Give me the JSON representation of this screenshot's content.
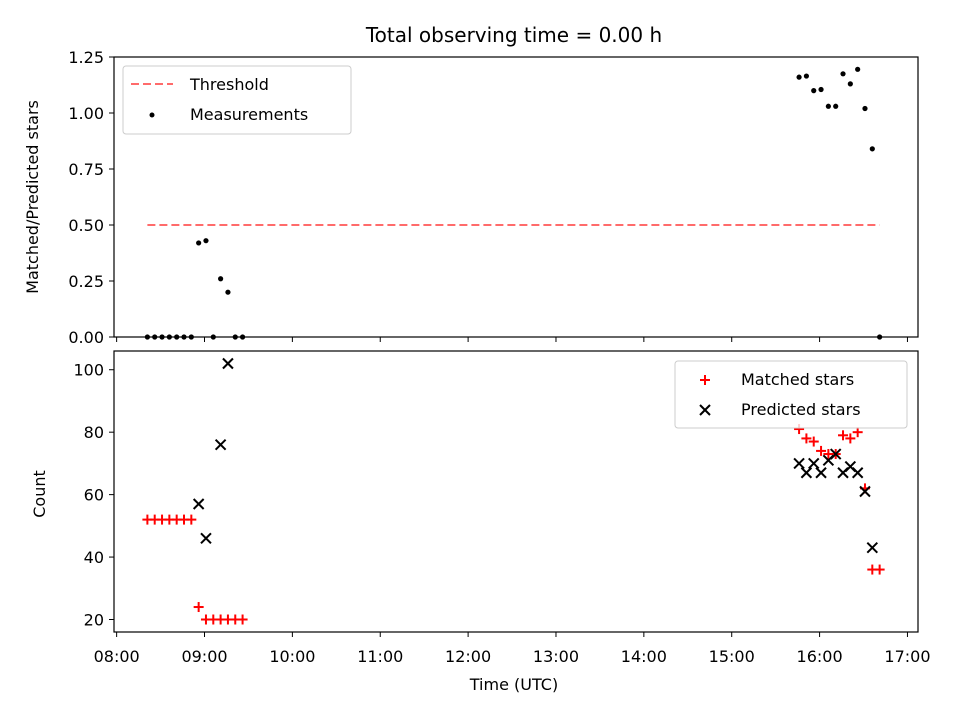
{
  "figure": {
    "title": "Total observing time = 0.00 h",
    "xlabel": "Time (UTC)"
  },
  "colors": {
    "threshold": "#ff6b6b",
    "measurements": "#000000",
    "matched": "#ff0000",
    "predicted": "#000000"
  },
  "chart_data": [
    {
      "type": "scatter",
      "panel": "top",
      "ylabel": "Matched/Predicted stars",
      "xlim": [
        "08:00",
        "17:00"
      ],
      "ylim": [
        0,
        1.25
      ],
      "xticks": [
        "08:00",
        "09:00",
        "10:00",
        "11:00",
        "12:00",
        "13:00",
        "14:00",
        "15:00",
        "16:00",
        "17:00"
      ],
      "xtick_labels_visible": false,
      "yticks": [
        0.0,
        0.25,
        0.5,
        0.75,
        1.0,
        1.25
      ],
      "ytick_labels": [
        "0.00",
        "0.25",
        "0.50",
        "0.75",
        "1.00",
        "1.25"
      ],
      "legend": {
        "placement": "upper-left",
        "entries": [
          "Threshold",
          "Measurements"
        ]
      },
      "series": [
        {
          "name": "Threshold",
          "style": "dashed-line",
          "x": [
            "08:21",
            "16:41"
          ],
          "y": [
            0.5,
            0.5
          ]
        },
        {
          "name": "Measurements",
          "style": "dots",
          "x": [
            "08:21",
            "08:26",
            "08:31",
            "08:36",
            "08:41",
            "08:46",
            "08:51",
            "08:56",
            "09:01",
            "09:06",
            "09:11",
            "09:16",
            "09:21",
            "09:26",
            "15:46",
            "15:51",
            "15:56",
            "16:01",
            "16:06",
            "16:11",
            "16:16",
            "16:21",
            "16:26",
            "16:31",
            "16:36",
            "16:41"
          ],
          "y": [
            0,
            0,
            0,
            0,
            0,
            0,
            0,
            0.42,
            0.43,
            0,
            0.26,
            0.2,
            0,
            0,
            1.16,
            1.165,
            1.1,
            1.105,
            1.03,
            1.03,
            1.175,
            1.13,
            1.195,
            1.02,
            0.84,
            0
          ]
        }
      ]
    },
    {
      "type": "scatter",
      "panel": "bottom",
      "ylabel": "Count",
      "xlim": [
        "08:00",
        "17:00"
      ],
      "ylim": [
        16,
        106
      ],
      "xticks": [
        "08:00",
        "09:00",
        "10:00",
        "11:00",
        "12:00",
        "13:00",
        "14:00",
        "15:00",
        "16:00",
        "17:00"
      ],
      "yticks": [
        20,
        40,
        60,
        80,
        100
      ],
      "legend": {
        "placement": "upper-right",
        "entries": [
          "Matched stars",
          "Predicted stars"
        ]
      },
      "series": [
        {
          "name": "Matched stars",
          "marker": "+",
          "x": [
            "08:21",
            "08:26",
            "08:31",
            "08:36",
            "08:41",
            "08:46",
            "08:51",
            "08:56",
            "09:01",
            "09:06",
            "09:11",
            "09:16",
            "09:21",
            "09:26",
            "15:46",
            "15:51",
            "15:56",
            "16:01",
            "16:06",
            "16:11",
            "16:16",
            "16:21",
            "16:26",
            "16:31",
            "16:36",
            "16:41"
          ],
          "y": [
            52,
            52,
            52,
            52,
            52,
            52,
            52,
            24,
            20,
            20,
            20,
            20,
            20,
            20,
            81,
            78,
            77,
            74,
            73,
            73,
            79,
            78,
            80,
            62,
            36,
            36
          ]
        },
        {
          "name": "Predicted stars",
          "marker": "x",
          "x": [
            "08:56",
            "09:01",
            "09:11",
            "09:16",
            "15:46",
            "15:51",
            "15:56",
            "16:01",
            "16:06",
            "16:11",
            "16:16",
            "16:21",
            "16:26",
            "16:31",
            "16:36"
          ],
          "y": [
            57,
            46,
            76,
            102,
            70,
            67,
            70,
            67,
            71,
            73,
            67,
            69,
            67,
            61,
            43
          ]
        }
      ]
    }
  ]
}
